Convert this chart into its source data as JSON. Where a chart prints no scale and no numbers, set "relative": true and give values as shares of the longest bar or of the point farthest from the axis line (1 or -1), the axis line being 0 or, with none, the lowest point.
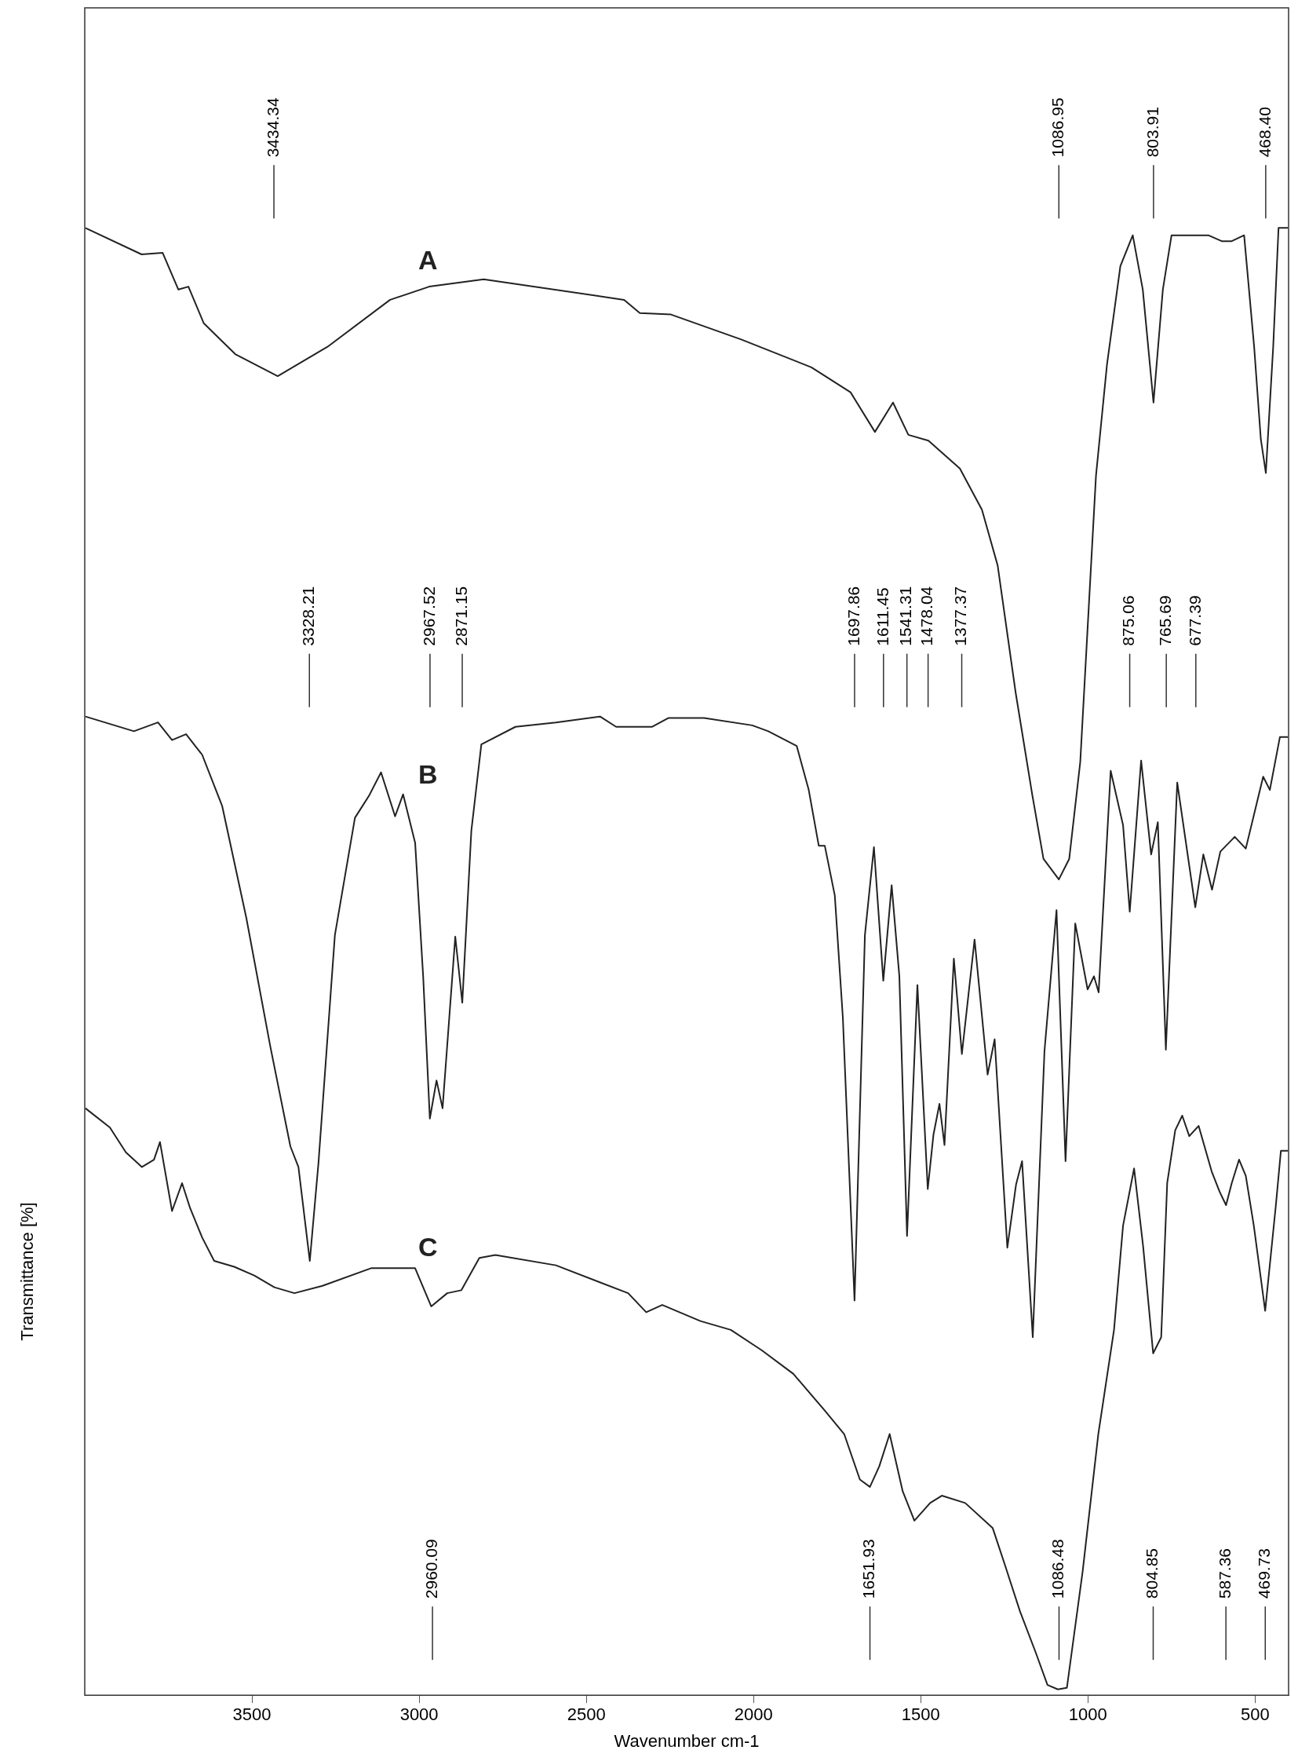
{
  "chart_data": {
    "type": "line",
    "xlabel": "Wavenumber cm-1",
    "ylabel": "Transmittance [%]",
    "relative": true,
    "grid": false,
    "legend": false,
    "marker": "none",
    "line_style": "solid",
    "xlim": [
      4000,
      400
    ],
    "xticks": [
      3500,
      3000,
      2500,
      2000,
      1500,
      1000,
      500
    ],
    "series": [
      {
        "name": "A",
        "color": "#222222",
        "x": [
          3998,
          3830,
          3767,
          3720,
          3690,
          3644,
          3550,
          3423,
          3274,
          3087,
          2970,
          2807,
          2387,
          2340,
          2247,
          2037,
          1827,
          1710,
          1637,
          1583,
          1537,
          1477,
          1383,
          1317,
          1270,
          1216,
          1166,
          1133,
          1087,
          1056,
          1023,
          976,
          943,
          903,
          866,
          836,
          804,
          776,
          750,
          640,
          600,
          570,
          533,
          503,
          483,
          468,
          446,
          430,
          402
        ],
        "values": [
          1.0,
          0.982,
          0.983,
          0.958,
          0.96,
          0.935,
          0.914,
          0.899,
          0.919,
          0.951,
          0.96,
          0.965,
          0.951,
          0.942,
          0.941,
          0.924,
          0.905,
          0.888,
          0.861,
          0.881,
          0.859,
          0.855,
          0.836,
          0.808,
          0.77,
          0.683,
          0.613,
          0.57,
          0.556,
          0.57,
          0.636,
          0.831,
          0.907,
          0.974,
          0.995,
          0.958,
          0.881,
          0.958,
          0.995,
          0.995,
          0.991,
          0.991,
          0.995,
          0.919,
          0.856,
          0.833,
          0.919,
          1.0,
          1.0
        ]
      },
      {
        "name": "B",
        "color": "#222222",
        "x": [
          3998,
          3853,
          3781,
          3739,
          3697,
          3649,
          3589,
          3517,
          3445,
          3385,
          3361,
          3327,
          3301,
          3252,
          3192,
          3150,
          3114,
          3072,
          3048,
          3012,
          2988,
          2968,
          2948,
          2930,
          2892,
          2871,
          2844,
          2814,
          2712,
          2591,
          2459,
          2411,
          2303,
          2255,
          2159,
          2148,
          2004,
          1956,
          1871,
          1835,
          1805,
          1787,
          1757,
          1733,
          1698,
          1667,
          1640,
          1612,
          1587,
          1564,
          1541,
          1510,
          1479,
          1462,
          1444,
          1429,
          1401,
          1377,
          1339,
          1300,
          1279,
          1241,
          1215,
          1197,
          1165,
          1130,
          1094,
          1067,
          1038,
          1001,
          982,
          968,
          932,
          895,
          875,
          841,
          811,
          791,
          767,
          733,
          679,
          655,
          629,
          604,
          561,
          528,
          476,
          456,
          426,
          402
        ],
        "values": [
          0.667,
          0.657,
          0.663,
          0.651,
          0.655,
          0.641,
          0.606,
          0.53,
          0.442,
          0.374,
          0.36,
          0.296,
          0.363,
          0.518,
          0.598,
          0.613,
          0.629,
          0.599,
          0.614,
          0.581,
          0.49,
          0.393,
          0.419,
          0.4,
          0.517,
          0.472,
          0.589,
          0.648,
          0.66,
          0.663,
          0.667,
          0.66,
          0.66,
          0.666,
          0.666,
          0.666,
          0.661,
          0.657,
          0.647,
          0.617,
          0.579,
          0.579,
          0.545,
          0.462,
          0.269,
          0.518,
          0.578,
          0.487,
          0.552,
          0.49,
          0.313,
          0.484,
          0.345,
          0.382,
          0.403,
          0.375,
          0.502,
          0.437,
          0.515,
          0.423,
          0.447,
          0.305,
          0.348,
          0.364,
          0.244,
          0.439,
          0.535,
          0.364,
          0.526,
          0.481,
          0.49,
          0.479,
          0.63,
          0.593,
          0.534,
          0.637,
          0.573,
          0.595,
          0.44,
          0.622,
          0.537,
          0.573,
          0.549,
          0.575,
          0.585,
          0.577,
          0.626,
          0.617,
          0.653,
          0.653
        ]
      },
      {
        "name": "C",
        "color": "#222222",
        "x": [
          3998,
          3925,
          3877,
          3829,
          3793,
          3775,
          3739,
          3709,
          3685,
          3649,
          3613,
          3553,
          3493,
          3433,
          3373,
          3289,
          3144,
          3012,
          2964,
          2916,
          2874,
          2820,
          2772,
          2591,
          2375,
          2321,
          2273,
          2159,
          2068,
          1975,
          1881,
          1787,
          1729,
          1682,
          1652,
          1624,
          1593,
          1554,
          1519,
          1472,
          1437,
          1367,
          1285,
          1250,
          1203,
          1156,
          1121,
          1090,
          1063,
          1016,
          969,
          922,
          895,
          862,
          835,
          805,
          781,
          763,
          739,
          718,
          697,
          669,
          630,
          606,
          587,
          570,
          548,
          528,
          504,
          470,
          438,
          423,
          402
        ],
        "values": [
          0.4,
          0.387,
          0.37,
          0.36,
          0.365,
          0.377,
          0.33,
          0.349,
          0.332,
          0.312,
          0.296,
          0.292,
          0.286,
          0.278,
          0.274,
          0.279,
          0.291,
          0.291,
          0.265,
          0.274,
          0.276,
          0.298,
          0.3,
          0.293,
          0.274,
          0.261,
          0.266,
          0.255,
          0.249,
          0.235,
          0.219,
          0.194,
          0.178,
          0.147,
          0.142,
          0.156,
          0.178,
          0.139,
          0.119,
          0.131,
          0.136,
          0.131,
          0.114,
          0.09,
          0.057,
          0.029,
          0.007,
          0.004,
          0.005,
          0.084,
          0.178,
          0.249,
          0.32,
          0.359,
          0.306,
          0.233,
          0.244,
          0.349,
          0.385,
          0.395,
          0.381,
          0.388,
          0.357,
          0.343,
          0.334,
          0.349,
          0.365,
          0.354,
          0.32,
          0.262,
          0.334,
          0.371,
          0.371
        ]
      }
    ],
    "annotations": [
      "3434.34",
      "1086.95",
      "803.91",
      "468.40",
      "3328.21",
      "2967.52",
      "2871.15",
      "1697.86",
      "1611.45",
      "1541.31",
      "1478.04",
      "1377.37",
      "875.06",
      "765.69",
      "677.39",
      "2960.09",
      "1651.93",
      "1086.48",
      "804.85",
      "587.36",
      "469.73"
    ]
  }
}
